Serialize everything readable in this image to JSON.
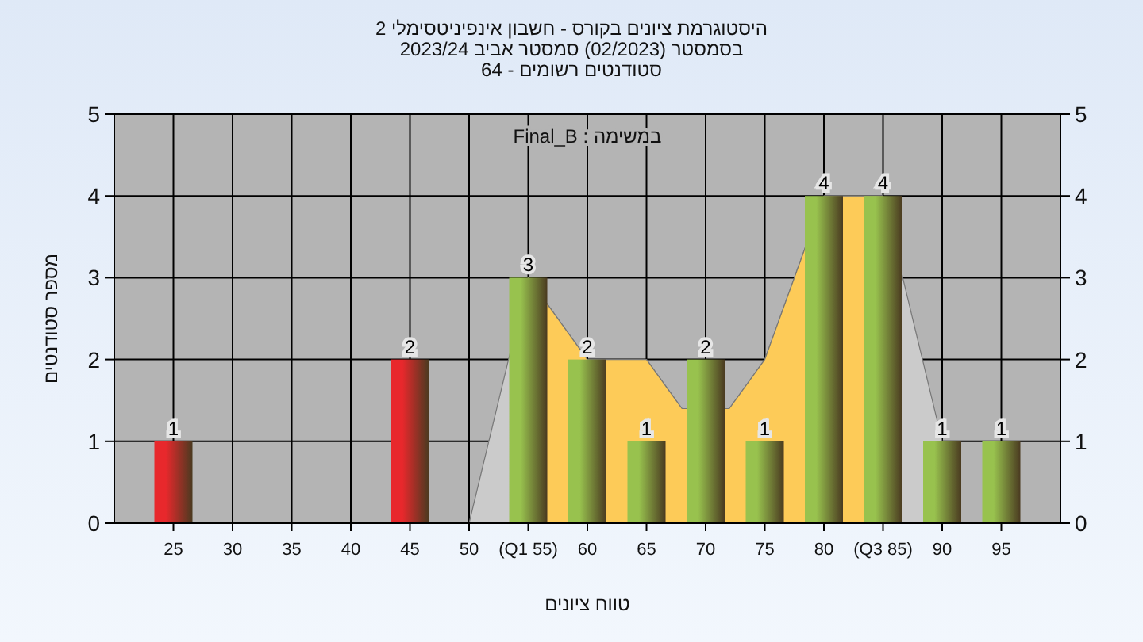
{
  "chart_data": {
    "type": "bar",
    "title": "היסטוגרמת ציונים בקורס - חשבון אינפיניטסימלי 2",
    "subtitle": "בסמסטר  (02/2023)  סמסטר אביב 2023/24\nסטודנטים רשומים - 64",
    "xlabel": "טווח ציונים",
    "ylabel": "מספר סטודנטים",
    "annotations": [
      "במשימה : Final_B"
    ],
    "xlim": [
      20,
      100
    ],
    "xticks": [
      25,
      30,
      35,
      40,
      45,
      50,
      {
        "value": 55,
        "label": "(Q1 55)"
      },
      60,
      65,
      70,
      75,
      80,
      {
        "value": 85,
        "label": "(Q3 85)"
      },
      90,
      95
    ],
    "ylim": [
      0,
      5
    ],
    "yticks": [
      0,
      1,
      2,
      3,
      4,
      5
    ],
    "y2lim": [
      0,
      5
    ],
    "y2ticks": [
      0,
      1,
      2,
      3,
      4,
      5
    ],
    "grid": true,
    "series": [
      {
        "type": "area",
        "color": "#cbcbcb",
        "x": [
          50,
          55,
          60,
          65,
          68,
          72,
          75,
          80,
          85,
          90
        ],
        "values": [
          0,
          3,
          2,
          2,
          1.4,
          1.4,
          2,
          4,
          4,
          1
        ]
      },
      {
        "type": "area",
        "color": "#fdcb58",
        "x": [
          55,
          60,
          65,
          68,
          72,
          75,
          80,
          85
        ],
        "values": [
          3,
          2,
          2,
          1.4,
          1.4,
          2,
          4,
          4
        ]
      },
      {
        "x": [
          25,
          45,
          55,
          60,
          65,
          70,
          75,
          80,
          85,
          90,
          95
        ],
        "values": [
          1,
          2,
          3,
          2,
          1,
          2,
          1,
          4,
          4,
          1,
          1
        ],
        "value_labels": [
          "1",
          "2",
          "3",
          "2",
          "1",
          "2",
          "1",
          "4",
          "4",
          "1",
          "1"
        ],
        "colors": [
          "#e8282c",
          "#e8282c",
          "#98c24e",
          "#98c24e",
          "#98c24e",
          "#98c24e",
          "#98c24e",
          "#98c24e",
          "#98c24e",
          "#98c24e",
          "#98c24e"
        ]
      }
    ]
  }
}
